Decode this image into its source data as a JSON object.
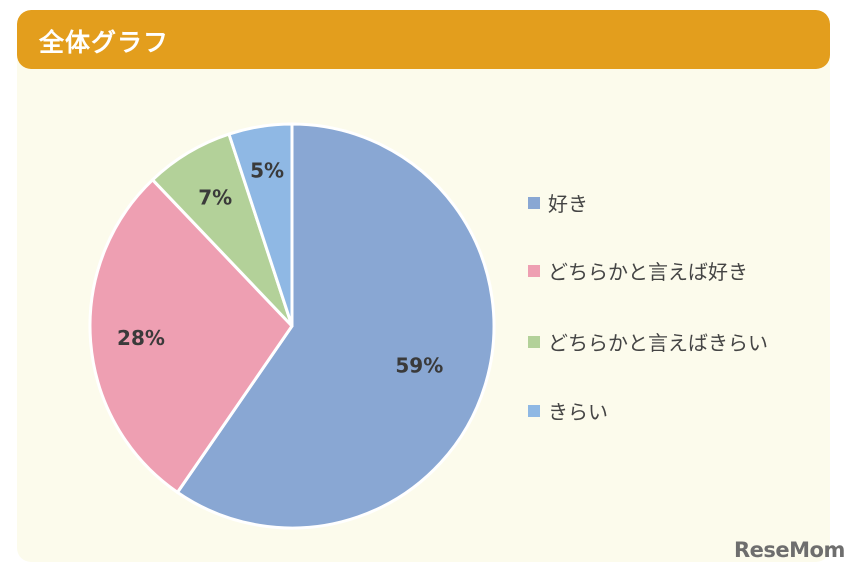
{
  "header": {
    "title": "全体グラフ"
  },
  "watermark": "ReseMom",
  "chart_data": {
    "type": "pie",
    "categories": [
      "好き",
      "どちらかと言えば好き",
      "どちらかと言えばきらい",
      "きらい"
    ],
    "values": [
      59,
      28,
      7,
      5
    ],
    "value_labels": [
      "59%",
      "28%",
      "7%",
      "5%"
    ],
    "colors": [
      "#89a7d3",
      "#ee9fb2",
      "#b3d199",
      "#8fb8e4"
    ],
    "legend_position": "right",
    "start": "top",
    "direction": "clockwise"
  }
}
